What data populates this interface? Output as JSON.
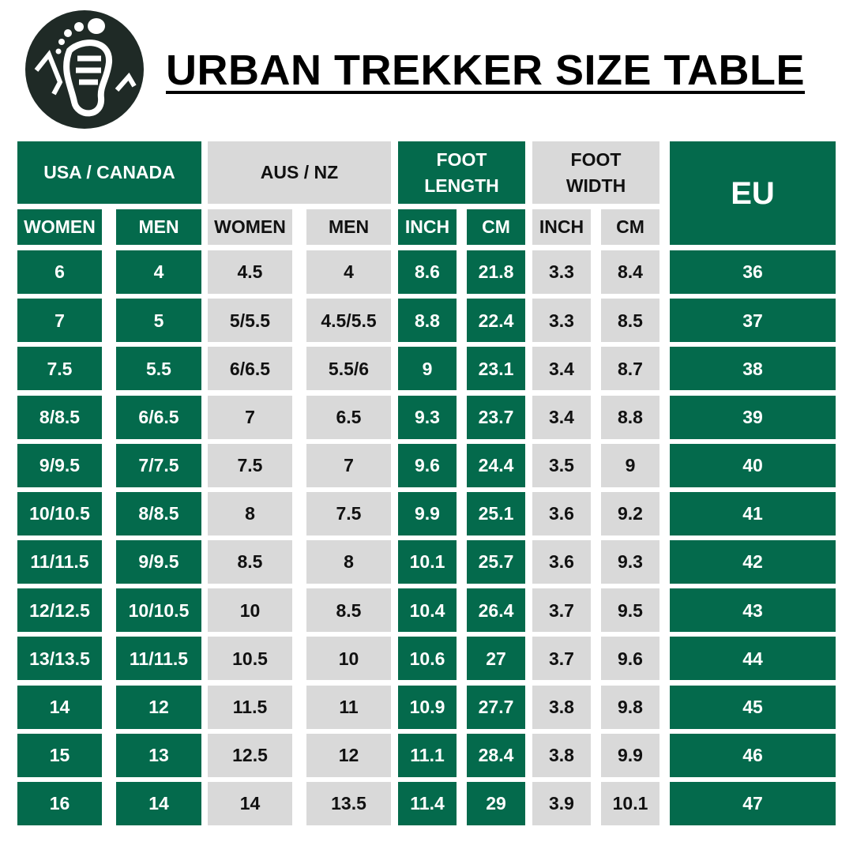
{
  "header": {
    "title": "URBAN TREKKER SIZE TABLE"
  },
  "table": {
    "groups": [
      "USA / CANADA",
      "AUS / NZ",
      "FOOT LENGTH",
      "FOOT WIDTH",
      "EU"
    ],
    "subheaders": [
      "WOMEN",
      "MEN",
      "WOMEN",
      "MEN",
      "INCH",
      "CM",
      "INCH",
      "CM"
    ],
    "rows": [
      [
        "6",
        "4",
        "4.5",
        "4",
        "8.6",
        "21.8",
        "3.3",
        "8.4",
        "36"
      ],
      [
        "7",
        "5",
        "5/5.5",
        "4.5/5.5",
        "8.8",
        "22.4",
        "3.3",
        "8.5",
        "37"
      ],
      [
        "7.5",
        "5.5",
        "6/6.5",
        "5.5/6",
        "9",
        "23.1",
        "3.4",
        "8.7",
        "38"
      ],
      [
        "8/8.5",
        "6/6.5",
        "7",
        "6.5",
        "9.3",
        "23.7",
        "3.4",
        "8.8",
        "39"
      ],
      [
        "9/9.5",
        "7/7.5",
        "7.5",
        "7",
        "9.6",
        "24.4",
        "3.5",
        "9",
        "40"
      ],
      [
        "10/10.5",
        "8/8.5",
        "8",
        "7.5",
        "9.9",
        "25.1",
        "3.6",
        "9.2",
        "41"
      ],
      [
        "11/11.5",
        "9/9.5",
        "8.5",
        "8",
        "10.1",
        "25.7",
        "3.6",
        "9.3",
        "42"
      ],
      [
        "12/12.5",
        "10/10.5",
        "10",
        "8.5",
        "10.4",
        "26.4",
        "3.7",
        "9.5",
        "43"
      ],
      [
        "13/13.5",
        "11/11.5",
        "10.5",
        "10",
        "10.6",
        "27",
        "3.7",
        "9.6",
        "44"
      ],
      [
        "14",
        "12",
        "11.5",
        "11",
        "10.9",
        "27.7",
        "3.8",
        "9.8",
        "45"
      ],
      [
        "15",
        "13",
        "12.5",
        "12",
        "11.1",
        "28.4",
        "3.8",
        "9.9",
        "46"
      ],
      [
        "16",
        "14",
        "14",
        "13.5",
        "11.4",
        "29",
        "3.9",
        "10.1",
        "47"
      ]
    ]
  }
}
